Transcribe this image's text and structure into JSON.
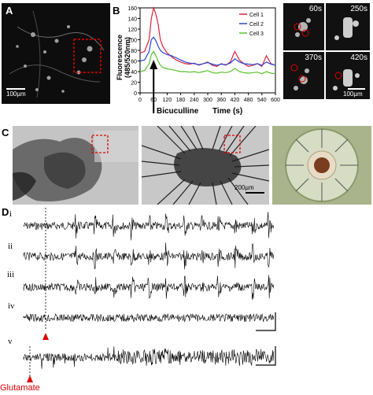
{
  "panels": {
    "A": {
      "letter": "A",
      "scale": "100µm"
    },
    "B": {
      "letter": "B",
      "ylabel": "Fluorescence (485/520nm)",
      "drug": "Bicuculline",
      "xlabel": "Time (s)"
    },
    "B_images": {
      "t1": "60s",
      "t2": "250s",
      "t3": "370s",
      "t4": "420s",
      "scale": "100µm"
    },
    "C": {
      "letter": "C",
      "scale": "200µm"
    },
    "D": {
      "letter": "D",
      "traces": [
        "i",
        "ii",
        "iii",
        "iv",
        "v"
      ],
      "stimulus": "Glutamate"
    }
  },
  "colors": {
    "cell1": "#e0203a",
    "cell2": "#2a46d8",
    "cell3": "#57c22a",
    "marker": "#e00000"
  },
  "chart_data": {
    "type": "line",
    "xlabel": "Time (s)",
    "ylabel": "Fluorescence (485/520nm)",
    "xlim": [
      0,
      600
    ],
    "ylim": [
      0,
      160
    ],
    "xticks": [
      0,
      60,
      120,
      180,
      240,
      300,
      360,
      420,
      480,
      540,
      600
    ],
    "yticks": [
      0,
      20,
      40,
      60,
      80,
      100,
      120,
      140,
      160
    ],
    "legend_position": "top-right",
    "series": [
      {
        "name": "Cell 1",
        "color": "#e0203a",
        "x": [
          0,
          20,
          40,
          50,
          60,
          70,
          80,
          90,
          100,
          120,
          140,
          160,
          180,
          200,
          220,
          240,
          260,
          280,
          300,
          320,
          340,
          360,
          380,
          400,
          420,
          440,
          460,
          480,
          500,
          520,
          540,
          560,
          580,
          600
        ],
        "y": [
          75,
          78,
          100,
          140,
          160,
          148,
          130,
          100,
          88,
          75,
          68,
          62,
          58,
          55,
          54,
          56,
          52,
          55,
          58,
          52,
          50,
          55,
          52,
          58,
          78,
          62,
          55,
          50,
          52,
          55,
          50,
          70,
          55,
          52
        ]
      },
      {
        "name": "Cell 2",
        "color": "#2a46d8",
        "x": [
          0,
          20,
          40,
          50,
          60,
          70,
          80,
          90,
          100,
          120,
          140,
          160,
          180,
          200,
          220,
          240,
          260,
          280,
          300,
          320,
          340,
          360,
          380,
          400,
          420,
          440,
          460,
          480,
          500,
          520,
          540,
          560,
          580,
          600
        ],
        "y": [
          60,
          62,
          78,
          100,
          105,
          98,
          88,
          80,
          76,
          72,
          70,
          66,
          62,
          58,
          56,
          55,
          53,
          55,
          57,
          54,
          52,
          54,
          53,
          56,
          64,
          58,
          55,
          54,
          53,
          55,
          52,
          58,
          54,
          52
        ]
      },
      {
        "name": "Cell 3",
        "color": "#57c22a",
        "x": [
          0,
          20,
          40,
          50,
          60,
          70,
          80,
          90,
          100,
          120,
          140,
          160,
          180,
          200,
          220,
          240,
          260,
          280,
          300,
          320,
          340,
          360,
          380,
          400,
          420,
          440,
          460,
          480,
          500,
          520,
          540,
          560,
          580,
          600
        ],
        "y": [
          40,
          42,
          55,
          72,
          78,
          70,
          60,
          52,
          48,
          45,
          44,
          42,
          40,
          40,
          39,
          40,
          38,
          40,
          42,
          38,
          37,
          39,
          38,
          40,
          46,
          40,
          38,
          37,
          38,
          39,
          36,
          40,
          37,
          36
        ]
      }
    ]
  }
}
